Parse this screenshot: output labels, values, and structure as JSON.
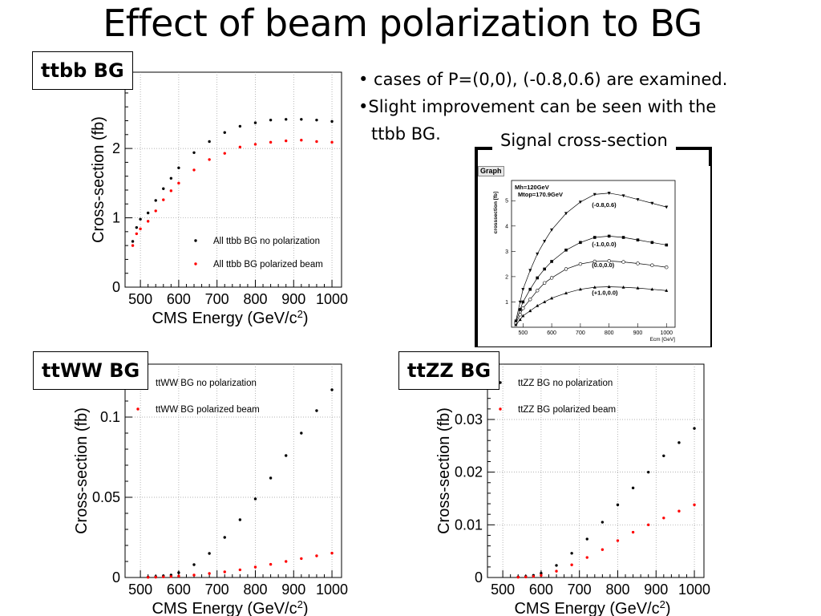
{
  "title": "Effect of beam polarization to BG",
  "bullets": {
    "b1": "• cases of P=(0,0), (-0.8,0.6) are examined.",
    "b2": "•Slight improvement can be seen with the",
    "b3": "ttbb BG."
  },
  "colors": {
    "series_black": "#000000",
    "series_red": "#ff0000",
    "grid": "#999999"
  },
  "signal_box": {
    "title": "Signal cross-section",
    "graph_tag": "Graph"
  },
  "chart_data": [
    {
      "id": "ttbb",
      "type": "scatter",
      "box_label": "ttbb BG",
      "xlabel": "CMS Energy (GeV/c",
      "xlabel_sup": "2",
      "xlabel_tail": ")",
      "ylabel": "Cross-section (fb)",
      "xlim": [
        460,
        1025
      ],
      "ylim": [
        0,
        3.1
      ],
      "xticks": [
        500,
        600,
        700,
        800,
        900,
        1000
      ],
      "yticks": [
        0,
        1,
        2
      ],
      "grid": true,
      "legend_position": "bottom-right",
      "series": [
        {
          "name": "All ttbb BG no polarization",
          "color": "#000000",
          "x": [
            480,
            490,
            500,
            520,
            540,
            560,
            580,
            600,
            640,
            680,
            720,
            760,
            800,
            840,
            880,
            920,
            960,
            1000
          ],
          "y": [
            0.66,
            0.86,
            0.98,
            1.07,
            1.25,
            1.42,
            1.57,
            1.72,
            1.94,
            2.1,
            2.23,
            2.32,
            2.37,
            2.41,
            2.42,
            2.42,
            2.41,
            2.39
          ]
        },
        {
          "name": "All ttbb BG polarized beam",
          "color": "#ff0000",
          "x": [
            480,
            490,
            500,
            520,
            540,
            560,
            580,
            600,
            640,
            680,
            720,
            760,
            800,
            840,
            880,
            920,
            960,
            1000
          ],
          "y": [
            0.6,
            0.77,
            0.84,
            0.95,
            1.1,
            1.26,
            1.39,
            1.5,
            1.69,
            1.84,
            1.93,
            2.02,
            2.06,
            2.09,
            2.11,
            2.12,
            2.1,
            2.09
          ]
        }
      ]
    },
    {
      "id": "ttww",
      "type": "scatter",
      "box_label": "ttWW BG",
      "xlabel": "CMS Energy (GeV/c",
      "xlabel_sup": "2",
      "xlabel_tail": ")",
      "ylabel": "Cross-section (fb)",
      "xlim": [
        460,
        1025
      ],
      "ylim": [
        0,
        0.133
      ],
      "xticks": [
        500,
        600,
        700,
        800,
        900,
        1000
      ],
      "yticks": [
        0,
        0.05,
        0.1
      ],
      "grid": true,
      "legend_position": "top-left",
      "series": [
        {
          "name": "ttWW BG no polarization",
          "color": "#000000",
          "x": [
            520,
            540,
            560,
            580,
            600,
            640,
            680,
            720,
            760,
            800,
            840,
            880,
            920,
            960,
            1000
          ],
          "y": [
            0.0003,
            0.0006,
            0.001,
            0.0015,
            0.003,
            0.008,
            0.015,
            0.025,
            0.036,
            0.049,
            0.062,
            0.076,
            0.09,
            0.104,
            0.117
          ]
        },
        {
          "name": "ttWW BG polarized beam",
          "color": "#ff0000",
          "x": [
            520,
            540,
            560,
            580,
            600,
            640,
            680,
            720,
            760,
            800,
            840,
            880,
            920,
            960,
            1000
          ],
          "y": [
            0.0001,
            0.0002,
            0.0004,
            0.0006,
            0.0009,
            0.0015,
            0.0025,
            0.0035,
            0.0048,
            0.0065,
            0.0082,
            0.01,
            0.0118,
            0.0135,
            0.0152
          ]
        }
      ]
    },
    {
      "id": "ttzz",
      "type": "scatter",
      "box_label": "ttZZ BG",
      "xlabel": "CMS Energy (GeV/c",
      "xlabel_sup": "2",
      "xlabel_tail": ")",
      "ylabel": "Cross-section (fb)",
      "xlim": [
        460,
        1025
      ],
      "ylim": [
        0,
        0.0405
      ],
      "xticks": [
        500,
        600,
        700,
        800,
        900,
        1000
      ],
      "yticks": [
        0,
        0.01,
        0.02,
        0.03
      ],
      "grid": true,
      "legend_position": "top-left",
      "series": [
        {
          "name": "ttZZ BG no polarization",
          "color": "#000000",
          "x": [
            540,
            560,
            580,
            600,
            640,
            680,
            720,
            760,
            800,
            840,
            880,
            920,
            960,
            1000
          ],
          "y": [
            0.0001,
            0.0002,
            0.0004,
            0.0008,
            0.0023,
            0.0046,
            0.0073,
            0.0105,
            0.0138,
            0.017,
            0.02,
            0.0231,
            0.0256,
            0.0283
          ]
        },
        {
          "name": "ttZZ BG polarized beam",
          "color": "#ff0000",
          "x": [
            540,
            560,
            580,
            600,
            640,
            680,
            720,
            760,
            800,
            840,
            880,
            920,
            960,
            1000
          ],
          "y": [
            5e-05,
            0.0001,
            0.0002,
            0.0004,
            0.0012,
            0.0024,
            0.0038,
            0.0053,
            0.007,
            0.0086,
            0.01,
            0.0113,
            0.0126,
            0.0138
          ]
        }
      ]
    },
    {
      "id": "signal",
      "type": "line",
      "xlabel": "Ecm [GeV]",
      "ylabel": "crosssection [fb]",
      "annotations": [
        "Mh=120GeV",
        "Mtop=170.9GeV"
      ],
      "xlim": [
        460,
        1030
      ],
      "ylim": [
        0,
        5.8
      ],
      "xticks": [
        500,
        600,
        700,
        800,
        900,
        1000
      ],
      "yticks": [
        1,
        2,
        3,
        4,
        5
      ],
      "grid": false,
      "series": [
        {
          "name": "(-0.8,0.6)",
          "marker": "triangle-down",
          "x": [
            475,
            490,
            500,
            525,
            550,
            575,
            600,
            650,
            700,
            750,
            800,
            850,
            900,
            950,
            1000
          ],
          "y": [
            0.25,
            1.0,
            1.5,
            2.25,
            2.9,
            3.4,
            3.85,
            4.5,
            4.95,
            5.25,
            5.3,
            5.2,
            5.05,
            4.9,
            4.75
          ]
        },
        {
          "name": "(-1.0,0.0)",
          "marker": "square",
          "x": [
            475,
            490,
            500,
            525,
            550,
            575,
            600,
            650,
            700,
            750,
            800,
            850,
            900,
            950,
            1000
          ],
          "y": [
            0.2,
            0.7,
            1.0,
            1.5,
            1.95,
            2.3,
            2.6,
            3.05,
            3.35,
            3.55,
            3.6,
            3.55,
            3.45,
            3.35,
            3.25
          ]
        },
        {
          "name": "(0.0,0.0)",
          "marker": "circle-open",
          "x": [
            475,
            490,
            500,
            525,
            550,
            575,
            600,
            650,
            700,
            750,
            800,
            850,
            900,
            950,
            1000
          ],
          "y": [
            0.15,
            0.5,
            0.75,
            1.1,
            1.45,
            1.75,
            1.95,
            2.3,
            2.5,
            2.6,
            2.62,
            2.58,
            2.52,
            2.45,
            2.37
          ]
        },
        {
          "name": "(+1.0,0.0)",
          "marker": "triangle-up",
          "x": [
            475,
            490,
            500,
            525,
            550,
            575,
            600,
            650,
            700,
            750,
            800,
            850,
            900,
            950,
            1000
          ],
          "y": [
            0.1,
            0.3,
            0.45,
            0.65,
            0.85,
            1.0,
            1.15,
            1.35,
            1.5,
            1.58,
            1.6,
            1.58,
            1.55,
            1.5,
            1.45
          ]
        }
      ]
    }
  ]
}
